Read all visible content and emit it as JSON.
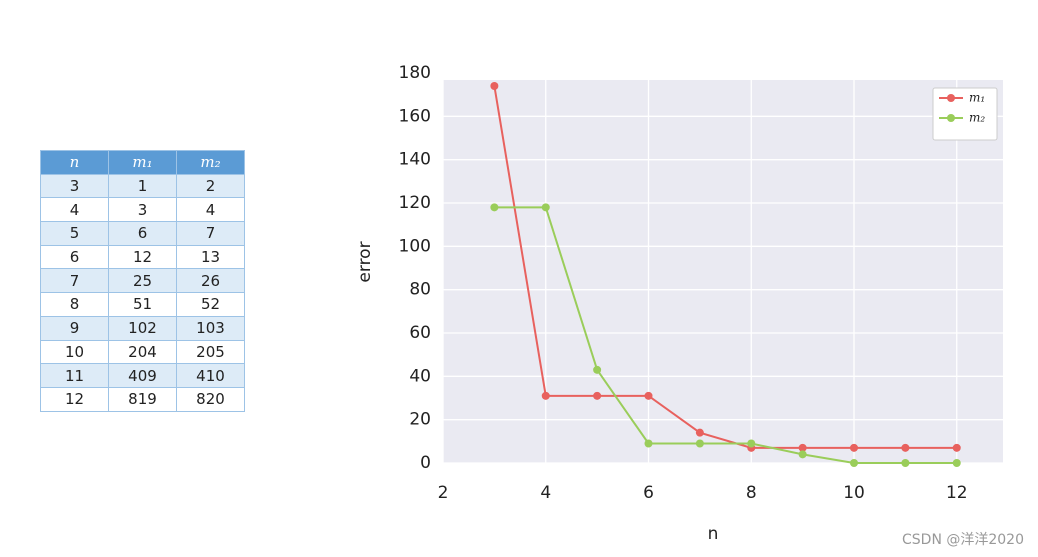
{
  "table": {
    "header": [
      "n",
      "m₁",
      "m₂"
    ],
    "rows": [
      [
        3,
        1,
        2
      ],
      [
        4,
        3,
        4
      ],
      [
        5,
        6,
        7
      ],
      [
        6,
        12,
        13
      ],
      [
        7,
        25,
        26
      ],
      [
        8,
        51,
        52
      ],
      [
        9,
        102,
        103
      ],
      [
        10,
        204,
        205
      ],
      [
        11,
        409,
        410
      ],
      [
        12,
        819,
        820
      ]
    ]
  },
  "chart_data": {
    "type": "line",
    "x_label": "n",
    "y_label": "error",
    "x": [
      3,
      4,
      5,
      6,
      7,
      8,
      9,
      10,
      11,
      12
    ],
    "series": [
      {
        "name": "m₁",
        "color": "#e8615e",
        "values": [
          174,
          31,
          31,
          31,
          14,
          7,
          7,
          7,
          7,
          7
        ]
      },
      {
        "name": "m₂",
        "color": "#9acd5a",
        "values": [
          118,
          118,
          43,
          9,
          9,
          9,
          4,
          0,
          0,
          0
        ]
      }
    ],
    "xlim": [
      2,
      12.9
    ],
    "xticks": [
      2,
      4,
      6,
      8,
      10,
      12
    ],
    "ylim": [
      0,
      180
    ],
    "yticks": [
      0,
      20,
      40,
      60,
      80,
      100,
      120,
      140,
      160,
      180
    ],
    "grid": true,
    "legend": "upper right"
  },
  "watermark": "CSDN @洋洋2020"
}
